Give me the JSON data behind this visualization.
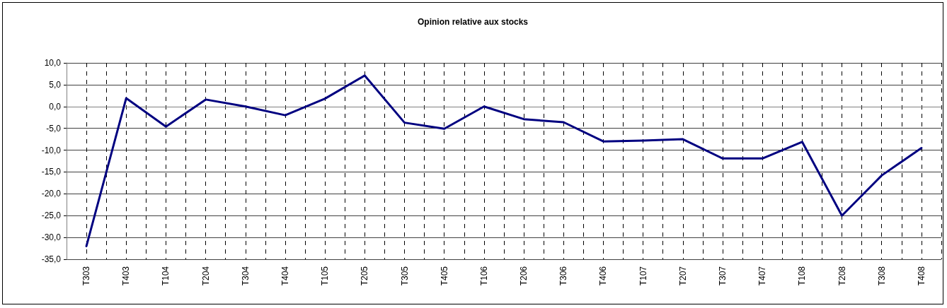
{
  "chart_data": {
    "type": "line",
    "title": "Opinion relative aux stocks",
    "categories": [
      "T303",
      "T403",
      "T104",
      "T204",
      "T304",
      "T404",
      "T105",
      "T205",
      "T305",
      "T405",
      "T106",
      "T206",
      "T306",
      "T406",
      "T107",
      "T207",
      "T307",
      "T407",
      "T108",
      "T208",
      "T308",
      "T408"
    ],
    "series": [
      {
        "color": "#000080",
        "values": [
          -32,
          1.9,
          -4.6,
          1.6,
          0,
          -2.0,
          1.8,
          7.1,
          -3.7,
          -5.1,
          0,
          -2.9,
          -3.6,
          -8.0,
          -7.8,
          -7.5,
          -11.9,
          -11.9,
          -8.1,
          -25.0,
          -15.8,
          -9.5
        ]
      }
    ],
    "ylim": [
      -35,
      10
    ],
    "yticks": [
      {
        "value": -35,
        "label": "-35,0"
      },
      {
        "value": -30,
        "label": "-30,0"
      },
      {
        "value": -25,
        "label": "-25,0"
      },
      {
        "value": -20,
        "label": "-20,0"
      },
      {
        "value": -15,
        "label": "-15,0"
      },
      {
        "value": -10,
        "label": "-10,0"
      },
      {
        "value": -5,
        "label": "-5,0"
      },
      {
        "value": 0,
        "label": "0,0"
      },
      {
        "value": 5,
        "label": "5,0"
      },
      {
        "value": 10,
        "label": "10,0"
      }
    ],
    "grid": true,
    "marker": "none",
    "line_style": "solid"
  }
}
